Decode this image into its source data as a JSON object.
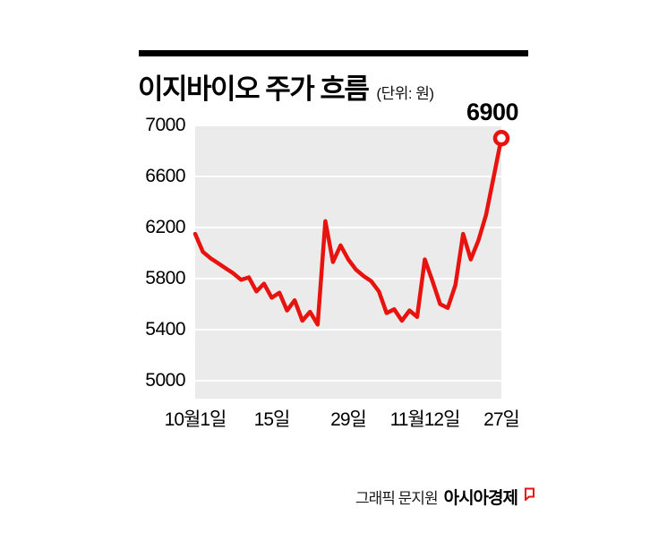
{
  "header": {
    "title": "이지바이오 주가 흐름",
    "unit": "(단위: 원)"
  },
  "chart_data": {
    "type": "line",
    "title": "이지바이오 주가 흐름",
    "unit_label": "(단위: 원)",
    "ylim": [
      5000,
      7000
    ],
    "yticks": [
      7000,
      6600,
      6200,
      5800,
      5400,
      5000
    ],
    "xticks": [
      {
        "label": "10월1일",
        "index": 0
      },
      {
        "label": "15일",
        "index": 10
      },
      {
        "label": "29일",
        "index": 20
      },
      {
        "label": "11월12일",
        "index": 30
      },
      {
        "label": "27일",
        "index": 40
      }
    ],
    "grid": true,
    "legend_position": "none",
    "panel_color": "#ebebeb",
    "grid_color": "#ffffff",
    "series": [
      {
        "name": "이지바이오 주가",
        "color": "#e8130e",
        "values": [
          6150,
          6010,
          5960,
          5920,
          5880,
          5840,
          5790,
          5810,
          5700,
          5760,
          5650,
          5690,
          5550,
          5630,
          5470,
          5540,
          5440,
          6250,
          5930,
          6060,
          5950,
          5870,
          5820,
          5780,
          5700,
          5530,
          5560,
          5470,
          5550,
          5500,
          5950,
          5780,
          5600,
          5570,
          5750,
          6150,
          5950,
          6100,
          6300,
          6600,
          6900
        ]
      }
    ],
    "annotation": {
      "label": "6900",
      "value": 6900
    }
  },
  "footer": {
    "credit": "그래픽 문지원",
    "brand": "아시아경제"
  }
}
